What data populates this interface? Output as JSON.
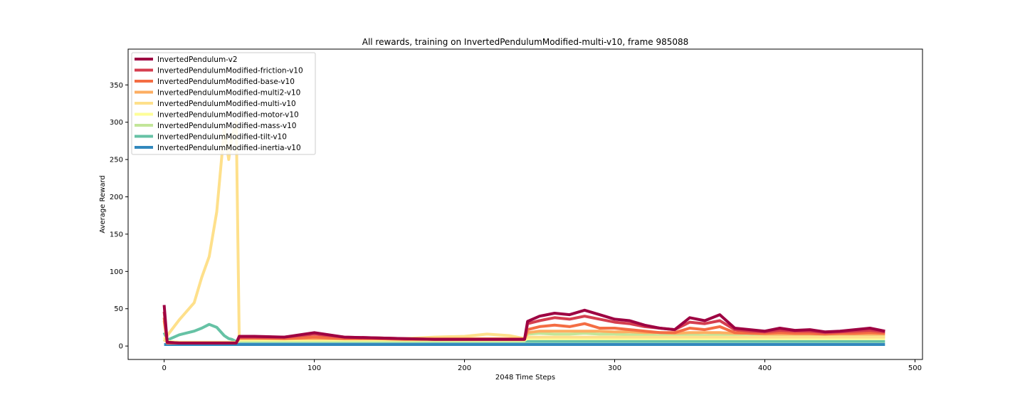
{
  "chart_data": {
    "type": "line",
    "title": "All rewards, training on InvertedPendulumModified-multi-v10, frame 985088",
    "xlabel": "2048 Time Steps",
    "ylabel": "Average Reward",
    "xlim": [
      -24,
      505
    ],
    "ylim": [
      -18,
      398
    ],
    "xticks": [
      0,
      100,
      200,
      300,
      400,
      500
    ],
    "yticks": [
      0,
      50,
      100,
      150,
      200,
      250,
      300,
      350
    ],
    "grid": false,
    "legend_position": "top-left",
    "x": [
      0,
      2,
      10,
      20,
      25,
      30,
      35,
      40,
      43,
      45,
      48,
      50,
      60,
      80,
      100,
      120,
      140,
      160,
      180,
      200,
      215,
      230,
      240,
      242,
      250,
      260,
      270,
      280,
      290,
      300,
      310,
      320,
      330,
      340,
      350,
      360,
      370,
      380,
      390,
      400,
      410,
      420,
      430,
      440,
      450,
      460,
      470,
      480
    ],
    "series": [
      {
        "name": "InvertedPendulum-v2",
        "color": "#9e0142",
        "values": [
          55,
          5,
          4,
          4,
          4,
          4,
          4,
          4,
          4,
          4,
          4,
          13,
          13,
          12,
          18,
          12,
          11,
          10,
          9,
          9,
          9,
          9,
          9,
          33,
          40,
          44,
          42,
          48,
          42,
          36,
          34,
          28,
          24,
          22,
          38,
          34,
          42,
          24,
          22,
          20,
          24,
          21,
          22,
          19,
          20,
          22,
          24,
          20
        ]
      },
      {
        "name": "InvertedPendulumModified-friction-v10",
        "color": "#d53e4f",
        "values": [
          46,
          5,
          4,
          4,
          4,
          4,
          4,
          4,
          4,
          4,
          4,
          12,
          12,
          12,
          16,
          12,
          11,
          10,
          9,
          9,
          9,
          9,
          9,
          30,
          34,
          38,
          36,
          40,
          36,
          32,
          30,
          26,
          24,
          22,
          32,
          30,
          34,
          22,
          20,
          19,
          21,
          20,
          20,
          18,
          19,
          20,
          21,
          19
        ]
      },
      {
        "name": "InvertedPendulumModified-base-v10",
        "color": "#f46d43",
        "values": [
          38,
          4,
          4,
          4,
          4,
          4,
          4,
          4,
          4,
          4,
          4,
          11,
          11,
          10,
          12,
          10,
          10,
          9,
          9,
          9,
          9,
          9,
          9,
          22,
          26,
          28,
          26,
          30,
          24,
          24,
          22,
          20,
          18,
          18,
          24,
          22,
          26,
          18,
          17,
          17,
          18,
          17,
          17,
          16,
          17,
          17,
          18,
          17
        ]
      },
      {
        "name": "InvertedPendulumModified-multi2-v10",
        "color": "#fdae61",
        "values": [
          34,
          4,
          4,
          4,
          4,
          4,
          4,
          4,
          4,
          4,
          4,
          10,
          10,
          10,
          10,
          10,
          10,
          10,
          10,
          10,
          10,
          10,
          10,
          18,
          20,
          20,
          20,
          20,
          20,
          19,
          19,
          18,
          18,
          17,
          18,
          18,
          18,
          17,
          17,
          16,
          16,
          16,
          16,
          16,
          16,
          16,
          16,
          16
        ]
      },
      {
        "name": "InvertedPendulumModified-multi-v10",
        "color": "#fee08b",
        "values": [
          6,
          14,
          35,
          58,
          92,
          120,
          180,
          290,
          250,
          280,
          300,
          10,
          10,
          11,
          10,
          10,
          11,
          10,
          12,
          13,
          16,
          14,
          10,
          12,
          12,
          12,
          12,
          12,
          12,
          12,
          12,
          12,
          12,
          12,
          12,
          12,
          12,
          12,
          12,
          12,
          12,
          12,
          12,
          12,
          12,
          12,
          12,
          12
        ]
      },
      {
        "name": "InvertedPendulumModified-motor-v10",
        "color": "#fefe98",
        "values": [
          12,
          6,
          5,
          5,
          5,
          5,
          5,
          5,
          5,
          5,
          5,
          8,
          8,
          8,
          8,
          8,
          8,
          8,
          8,
          8,
          8,
          8,
          8,
          10,
          10,
          10,
          10,
          10,
          10,
          10,
          10,
          10,
          10,
          10,
          10,
          10,
          10,
          10,
          10,
          10,
          10,
          10,
          10,
          10,
          10,
          10,
          10,
          10
        ]
      },
      {
        "name": "InvertedPendulumModified-mass-v10",
        "color": "#c2e699",
        "values": [
          8,
          6,
          5,
          5,
          5,
          5,
          5,
          5,
          5,
          5,
          5,
          7,
          7,
          7,
          7,
          7,
          7,
          7,
          7,
          7,
          7,
          7,
          7,
          16,
          17,
          16,
          16,
          17,
          16,
          16,
          15,
          15,
          14,
          14,
          15,
          14,
          15,
          14,
          13,
          13,
          13,
          13,
          13,
          13,
          13,
          13,
          13,
          13
        ]
      },
      {
        "name": "InvertedPendulumModified-tilt-v10",
        "color": "#66c2a5",
        "values": [
          18,
          8,
          15,
          20,
          24,
          29,
          25,
          14,
          10,
          9,
          6,
          6,
          6,
          6,
          6,
          6,
          6,
          6,
          6,
          6,
          6,
          6,
          6,
          6,
          6,
          6,
          6,
          6,
          6,
          6,
          6,
          6,
          6,
          6,
          6,
          6,
          6,
          6,
          6,
          6,
          6,
          6,
          6,
          6,
          6,
          6,
          6,
          6
        ]
      },
      {
        "name": "InvertedPendulumModified-inertia-v10",
        "color": "#3288bd",
        "values": [
          2,
          2,
          2,
          2,
          2,
          2,
          2,
          2,
          2,
          2,
          2,
          2,
          2,
          2,
          2,
          2,
          2,
          2,
          2,
          2,
          2,
          2,
          2,
          2,
          2,
          2,
          2,
          2,
          2,
          2,
          2,
          2,
          2,
          2,
          2,
          2,
          2,
          2,
          2,
          2,
          2,
          2,
          2,
          2,
          2,
          2,
          2,
          2
        ]
      }
    ]
  }
}
